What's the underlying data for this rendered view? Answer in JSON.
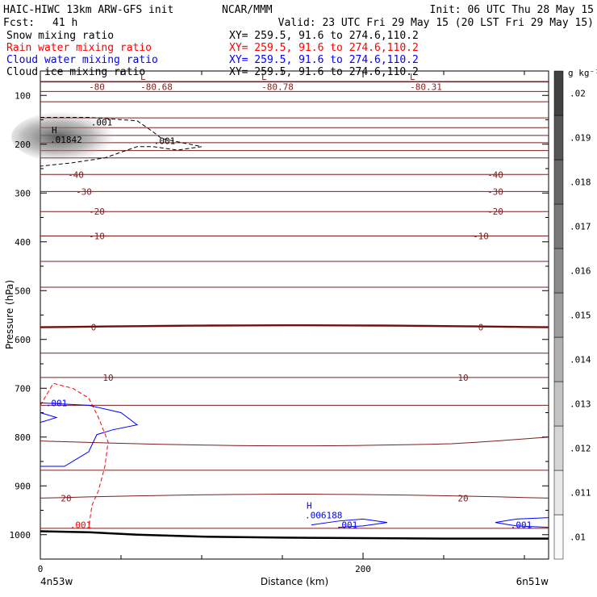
{
  "header": {
    "title": "HAIC-HIWC 13km ARW-GFS init",
    "org": "NCAR/MMM",
    "init": "Init: 06 UTC Thu 28 May 15",
    "fcst_label": "Fcst:",
    "fcst_value": "41 h",
    "valid": "Valid: 23 UTC Fri 29 May 15 (20 LST Fri 29 May 15)"
  },
  "fields": [
    {
      "name": "Snow mixing ratio",
      "xy": "XY= 259.5, 91.6 to 274.6,110.2",
      "color": "#000000"
    },
    {
      "name": "Rain water mixing ratio",
      "xy": "XY= 259.5, 91.6 to 274.6,110.2",
      "color": "#ff0000"
    },
    {
      "name": "Cloud water mixing ratio",
      "xy": "XY= 259.5, 91.6 to 274.6,110.2",
      "color": "#0000ff"
    },
    {
      "name": "Cloud ice mixing ratio",
      "xy": "XY= 259.5, 91.6 to 274.6,110.2",
      "color": "#000000"
    }
  ],
  "colors": {
    "temperature": "#7a1f1f",
    "temperature_zero": "#6b1111",
    "rain": "#ff0000",
    "cloud_water": "#0000ff",
    "cloud_ice": "#000000",
    "terrain": "#000000"
  },
  "chart_data": {
    "type": "cross-section contour",
    "xlabel": "Distance (km)",
    "ylabel": "Pressure (hPa)",
    "xlim": [
      0,
      315
    ],
    "ylim": [
      50,
      1050
    ],
    "x_ticks": [
      0,
      200
    ],
    "x_minor_ticks": [
      50,
      100,
      150,
      250,
      300
    ],
    "y_ticks": [
      100,
      200,
      300,
      400,
      500,
      600,
      700,
      800,
      900,
      1000
    ],
    "left_endpoint_label": "4n53w",
    "right_endpoint_label": "6n51w",
    "colorbar": {
      "units": "g kg⁻¹",
      "values": [
        0.01,
        0.011,
        0.012,
        0.013,
        0.014,
        0.015,
        0.016,
        0.017,
        0.018,
        0.019,
        0.02
      ],
      "tick_labels": [
        ".01",
        ".011",
        ".012",
        ".013",
        ".014",
        ".015",
        ".016",
        ".017",
        ".018",
        ".019",
        ".02"
      ]
    },
    "temperature_contours": [
      {
        "value": -80,
        "labels": [
          {
            "text": "-80",
            "x": 35
          }
        ]
      },
      {
        "value": -40,
        "labels": [
          {
            "text": "-40",
            "x": 22
          },
          {
            "text": "-40",
            "x": 282
          }
        ]
      },
      {
        "value": -30,
        "labels": [
          {
            "text": "-30",
            "x": 27
          },
          {
            "text": "-30",
            "x": 282
          }
        ]
      },
      {
        "value": -20,
        "labels": [
          {
            "text": "-20",
            "x": 35
          },
          {
            "text": "-20",
            "x": 282
          }
        ]
      },
      {
        "value": -10,
        "labels": [
          {
            "text": "-10",
            "x": 35
          },
          {
            "text": "-10",
            "x": 273
          }
        ]
      },
      {
        "value": 0,
        "labels": [
          {
            "text": "0",
            "x": 33
          },
          {
            "text": "0",
            "x": 273
          }
        ]
      },
      {
        "value": 10,
        "labels": [
          {
            "text": "10",
            "x": 42
          },
          {
            "text": "10",
            "x": 262
          }
        ]
      },
      {
        "value": 20,
        "labels": [
          {
            "text": "20",
            "x": 16
          },
          {
            "text": "20",
            "x": 262
          }
        ]
      }
    ],
    "minima": [
      {
        "symbol": "L",
        "value": "-80.68",
        "x": 65
      },
      {
        "symbol": "L",
        "value": "-80.78",
        "x": 140
      },
      {
        "symbol": "L",
        "value": "-80.31",
        "x": 232
      }
    ],
    "maxima": [
      {
        "symbol": "H",
        "value": ".01842",
        "x": 7,
        "p": 200,
        "field": "Snow mixing ratio"
      },
      {
        "symbol": "H",
        "value": ".006188",
        "x": 165,
        "p": 970,
        "field": "Cloud water mixing ratio"
      }
    ],
    "contour_labels": [
      {
        "text": ".001",
        "field": "Snow mixing ratio",
        "x": 38,
        "p": 155
      },
      {
        "text": ".001",
        "field": "Snow mixing ratio",
        "x": 77,
        "p": 193
      },
      {
        "text": ".001",
        "field": "Cloud water mixing ratio",
        "x": 10,
        "p": 730
      },
      {
        "text": ".001",
        "field": "Cloud water mixing ratio",
        "x": 190,
        "p": 980
      },
      {
        "text": ".001",
        "field": "Cloud water mixing ratio",
        "x": 298,
        "p": 980
      },
      {
        "text": ".001",
        "field": "Rain water mixing ratio",
        "x": 25,
        "p": 980
      }
    ]
  }
}
